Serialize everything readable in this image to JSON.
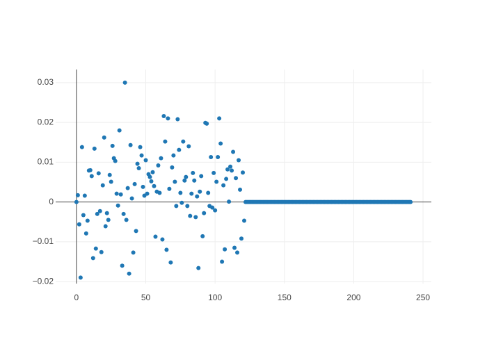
{
  "chart_data": {
    "type": "scatter",
    "color": "#1f77b4",
    "grid": true,
    "xlim": [
      -15,
      256
    ],
    "ylim": [
      -0.0205,
      0.0333
    ],
    "xticks": [
      0,
      50,
      100,
      150,
      200,
      250
    ],
    "yticks": [
      {
        "value": -0.02,
        "label": "−0.02"
      },
      {
        "value": -0.01,
        "label": "−0.01"
      },
      0,
      0.01,
      0.02,
      0.03
    ],
    "x": [
      0,
      1,
      2,
      3,
      4,
      5,
      6,
      7,
      8,
      9,
      10,
      11,
      12,
      13,
      14,
      15,
      16,
      17,
      18,
      19,
      20,
      21,
      22,
      23,
      24,
      25,
      26,
      27,
      28,
      29,
      30,
      31,
      32,
      33,
      34,
      35,
      36,
      37,
      38,
      39,
      40,
      41,
      42,
      43,
      44,
      45,
      46,
      47,
      48,
      49,
      50,
      51,
      52,
      53,
      54,
      55,
      56,
      57,
      58,
      59,
      60,
      61,
      62,
      63,
      64,
      65,
      66,
      67,
      68,
      69,
      70,
      71,
      72,
      73,
      74,
      75,
      76,
      77,
      78,
      79,
      80,
      81,
      82,
      83,
      84,
      85,
      86,
      87,
      88,
      89,
      90,
      91,
      92,
      93,
      94,
      95,
      96,
      97,
      98,
      99,
      100,
      101,
      102,
      103,
      104,
      105,
      106,
      107,
      108,
      109,
      110,
      111,
      112,
      113,
      114,
      115,
      116,
      117,
      118,
      119,
      120,
      121,
      122,
      123,
      124,
      125,
      126,
      127,
      128,
      129,
      130,
      131,
      132,
      133,
      134,
      135,
      136,
      137,
      138,
      139,
      140,
      141,
      142,
      143,
      144,
      145,
      146,
      147,
      148,
      149,
      150,
      151,
      152,
      153,
      154,
      155,
      156,
      157,
      158,
      159,
      160,
      161,
      162,
      163,
      164,
      165,
      166,
      167,
      168,
      169,
      170,
      171,
      172,
      173,
      174,
      175,
      176,
      177,
      178,
      179,
      180,
      181,
      182,
      183,
      184,
      185,
      186,
      187,
      188,
      189,
      190,
      191,
      192,
      193,
      194,
      195,
      196,
      197,
      198,
      199,
      200,
      201,
      202,
      203,
      204,
      205,
      206,
      207,
      208,
      209,
      210,
      211,
      212,
      213,
      214,
      215,
      216,
      217,
      218,
      219,
      220,
      221,
      222,
      223,
      224,
      225,
      226,
      227,
      228,
      229,
      230,
      231,
      232,
      233,
      234,
      235,
      236,
      237,
      238,
      239,
      240,
      241
    ],
    "values": [
      0,
      0.0017,
      -0.0056,
      -0.019,
      0.0138,
      -0.0033,
      0.0016,
      -0.0079,
      -0.0047,
      0.0079,
      0.008,
      0.0065,
      -0.0141,
      0.0134,
      -0.0117,
      -0.003,
      0.0072,
      -0.0023,
      -0.0126,
      0.0042,
      0.0162,
      -0.0061,
      -0.0028,
      -0.0045,
      0.0068,
      0.0051,
      0.0141,
      0.011,
      0.0103,
      0.0021,
      -0.0009,
      0.018,
      0.0019,
      -0.016,
      -0.003,
      0.03,
      -0.0045,
      0.0035,
      -0.018,
      0.0143,
      0.0009,
      -0.0127,
      0.0045,
      -0.0073,
      0.0096,
      0.0085,
      0.0138,
      0.0117,
      0.0038,
      0.0016,
      0.0105,
      0.0021,
      0.007,
      0.0063,
      0.0052,
      0.0075,
      0.004,
      -0.0087,
      0.0026,
      0.0092,
      0.0023,
      0.011,
      -0.0094,
      0.0216,
      0.0152,
      -0.012,
      0.021,
      0.0033,
      -0.0152,
      0.0087,
      0.0117,
      0.0051,
      -0.001,
      0.0208,
      0.0131,
      0.0023,
      -0.0002,
      0.0152,
      0.0054,
      0.0063,
      -0.001,
      0.014,
      -0.0035,
      0.0021,
      0.0073,
      0.0054,
      -0.0038,
      0.0014,
      -0.0166,
      0.0026,
      0.0065,
      -0.0086,
      -0.0028,
      0.0199,
      0.0197,
      0.0023,
      -0.001,
      0.0113,
      -0.0014,
      0.0073,
      -0.0021,
      0.0051,
      0.0113,
      0.021,
      0.0147,
      -0.015,
      0.0042,
      -0.0119,
      0.0058,
      0.0082,
      0.0001,
      0.0089,
      0.0079,
      0.0126,
      -0.0115,
      0.006,
      -0.0127,
      0.0105,
      0.0031,
      -0.0092,
      0.0074,
      -0.0047,
      0,
      0,
      0,
      0,
      0,
      0,
      0,
      0,
      0,
      0,
      0,
      0,
      0,
      0,
      0,
      0,
      0,
      0,
      0,
      0,
      0,
      0,
      0,
      0,
      0,
      0,
      0,
      0,
      0,
      0,
      0,
      0,
      0,
      0,
      0,
      0,
      0,
      0,
      0,
      0,
      0,
      0,
      0,
      0,
      0,
      0,
      0,
      0,
      0,
      0,
      0,
      0,
      0,
      0,
      0,
      0,
      0,
      0,
      0,
      0,
      0,
      0,
      0,
      0,
      0,
      0,
      0,
      0,
      0,
      0,
      0,
      0,
      0,
      0,
      0,
      0,
      0,
      0,
      0,
      0,
      0,
      0,
      0,
      0,
      0,
      0,
      0,
      0,
      0,
      0,
      0,
      0,
      0,
      0,
      0,
      0,
      0,
      0,
      0,
      0,
      0,
      0,
      0,
      0,
      0,
      0,
      0,
      0,
      0,
      0,
      0,
      0,
      0,
      0,
      0,
      0,
      0,
      0,
      0,
      0
    ]
  }
}
